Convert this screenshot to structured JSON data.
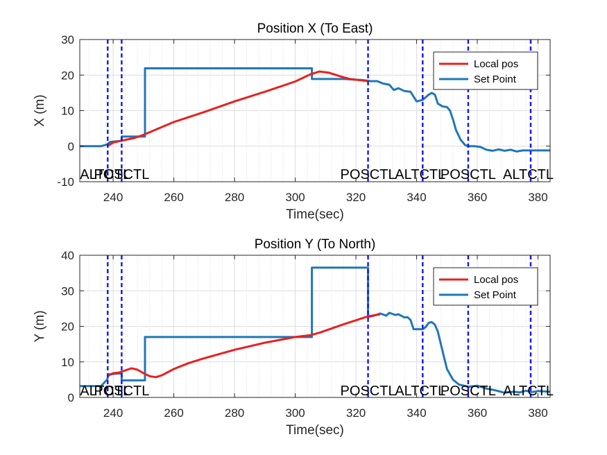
{
  "colors": {
    "local": "#e8201e",
    "setpoint": "#1f77b8",
    "mode_line": "#1a1aff",
    "axis": "#262626",
    "grid": "#dcdcdc"
  },
  "mode_changes": [
    {
      "t": 238.2,
      "label": "ALTCTL"
    },
    {
      "t": 242.8,
      "label": "POSCTL"
    },
    {
      "t": 324.0,
      "label": "POSCTL"
    },
    {
      "t": 342.0,
      "label": "ALTCTL"
    },
    {
      "t": 357.0,
      "label": "POSCTL"
    },
    {
      "t": 377.6,
      "label": "ALTCTL"
    }
  ],
  "chart_data": [
    {
      "type": "line",
      "title": "Position X (To East)",
      "xlabel": "Time(sec)",
      "ylabel": "X (m)",
      "xlim": [
        229,
        384
      ],
      "ylim": [
        -10,
        30
      ],
      "xticks": [
        240,
        260,
        280,
        300,
        320,
        340,
        360,
        380
      ],
      "yticks": [
        -10,
        0,
        10,
        20,
        30
      ],
      "grid": true,
      "legend": "top-right",
      "series": [
        {
          "name": "Local pos",
          "color_key": "local",
          "points": [
            [
              238,
              0
            ],
            [
              240,
              1
            ],
            [
              243,
              1.6
            ],
            [
              247,
              2.3
            ],
            [
              250,
              3.2
            ],
            [
              255,
              5
            ],
            [
              260,
              6.8
            ],
            [
              270,
              9.6
            ],
            [
              280,
              12.6
            ],
            [
              290,
              15.3
            ],
            [
              300,
              18.2
            ],
            [
              305,
              20.2
            ],
            [
              308,
              21
            ],
            [
              311,
              20.7
            ],
            [
              315,
              19.6
            ],
            [
              318,
              18.9
            ],
            [
              322,
              18.5
            ],
            [
              324,
              18.3
            ]
          ]
        },
        {
          "name": "Set Point",
          "color_key": "setpoint",
          "points": [
            [
              229,
              0
            ],
            [
              236,
              0
            ],
            [
              238,
              0.5
            ],
            [
              239,
              1.2
            ],
            [
              242.8,
              1.5
            ],
            [
              242.8,
              2.7
            ],
            [
              250.5,
              2.7
            ],
            [
              250.5,
              21.9
            ],
            [
              305.5,
              21.9
            ],
            [
              305.5,
              18.9
            ],
            [
              316,
              18.9
            ],
            [
              322,
              18.6
            ],
            [
              325,
              18.3
            ],
            [
              327,
              18.3
            ],
            [
              329,
              17.6
            ],
            [
              331,
              17.3
            ],
            [
              332.5,
              15.8
            ],
            [
              334,
              16.3
            ],
            [
              336,
              15.5
            ],
            [
              338,
              15.3
            ],
            [
              340,
              12.6
            ],
            [
              342,
              13
            ],
            [
              344,
              14.5
            ],
            [
              345,
              15
            ],
            [
              346,
              14.5
            ],
            [
              347,
              12
            ],
            [
              348.5,
              11.2
            ],
            [
              350,
              11
            ],
            [
              351,
              10
            ],
            [
              352,
              7.5
            ],
            [
              353,
              4.5
            ],
            [
              354.5,
              1.8
            ],
            [
              356,
              0.3
            ],
            [
              357,
              0
            ],
            [
              359,
              0
            ],
            [
              361,
              -0.2
            ],
            [
              363,
              -1
            ],
            [
              365,
              -1.3
            ],
            [
              367,
              -0.9
            ],
            [
              369,
              -1.3
            ],
            [
              371,
              -1
            ],
            [
              373,
              -1.5
            ],
            [
              375,
              -1.2
            ],
            [
              378,
              -1.2
            ],
            [
              384,
              -1.2
            ]
          ]
        }
      ]
    },
    {
      "type": "line",
      "title": "Position Y (To North)",
      "xlabel": "Time(sec)",
      "ylabel": "Y (m)",
      "xlim": [
        229,
        384
      ],
      "ylim": [
        0,
        40
      ],
      "xticks": [
        240,
        260,
        280,
        300,
        320,
        340,
        360,
        380
      ],
      "yticks": [
        0,
        10,
        20,
        30,
        40
      ],
      "grid": true,
      "legend": "top-right",
      "series": [
        {
          "name": "Local pos",
          "color_key": "local",
          "points": [
            [
              238,
              6
            ],
            [
              240,
              6.8
            ],
            [
              242,
              7
            ],
            [
              244,
              7.6
            ],
            [
              246,
              8.2
            ],
            [
              248,
              7.8
            ],
            [
              250,
              6.8
            ],
            [
              252,
              6
            ],
            [
              254,
              5.7
            ],
            [
              256,
              6.2
            ],
            [
              260,
              8
            ],
            [
              265,
              9.7
            ],
            [
              270,
              11
            ],
            [
              280,
              13.4
            ],
            [
              290,
              15.4
            ],
            [
              300,
              17
            ],
            [
              305,
              17.5
            ],
            [
              308,
              18.2
            ],
            [
              312,
              19.4
            ],
            [
              316,
              20.6
            ],
            [
              320,
              21.7
            ],
            [
              324,
              22.8
            ],
            [
              328,
              23.4
            ]
          ]
        },
        {
          "name": "Set Point",
          "color_key": "setpoint",
          "points": [
            [
              229,
              3.2
            ],
            [
              236,
              3.2
            ],
            [
              238,
              5
            ],
            [
              238.5,
              6.5
            ],
            [
              242.8,
              6.8
            ],
            [
              242.8,
              4.8
            ],
            [
              250.5,
              4.8
            ],
            [
              250.5,
              17
            ],
            [
              305.5,
              17
            ],
            [
              305.5,
              36.5
            ],
            [
              324,
              36.5
            ],
            [
              324,
              22.6
            ],
            [
              326,
              23
            ],
            [
              328,
              23.6
            ],
            [
              330,
              23
            ],
            [
              331,
              23.8
            ],
            [
              333,
              23.2
            ],
            [
              334,
              23.4
            ],
            [
              336,
              22.5
            ],
            [
              337,
              22.6
            ],
            [
              338,
              21.8
            ],
            [
              339,
              19.2
            ],
            [
              342,
              19.2
            ],
            [
              343,
              19.8
            ],
            [
              344,
              21
            ],
            [
              345,
              21.2
            ],
            [
              346,
              20.5
            ],
            [
              347,
              18.5
            ],
            [
              348,
              15
            ],
            [
              349,
              11.5
            ],
            [
              350,
              8
            ],
            [
              352,
              5
            ],
            [
              354,
              3.6
            ],
            [
              357,
              3
            ],
            [
              360,
              3.3
            ],
            [
              363,
              2.5
            ],
            [
              366,
              2
            ],
            [
              369,
              1.3
            ],
            [
              372,
              1.6
            ],
            [
              374,
              1.4
            ],
            [
              376,
              1.9
            ],
            [
              378,
              1.5
            ],
            [
              380,
              1.8
            ],
            [
              384,
              1.6
            ]
          ]
        }
      ]
    }
  ]
}
